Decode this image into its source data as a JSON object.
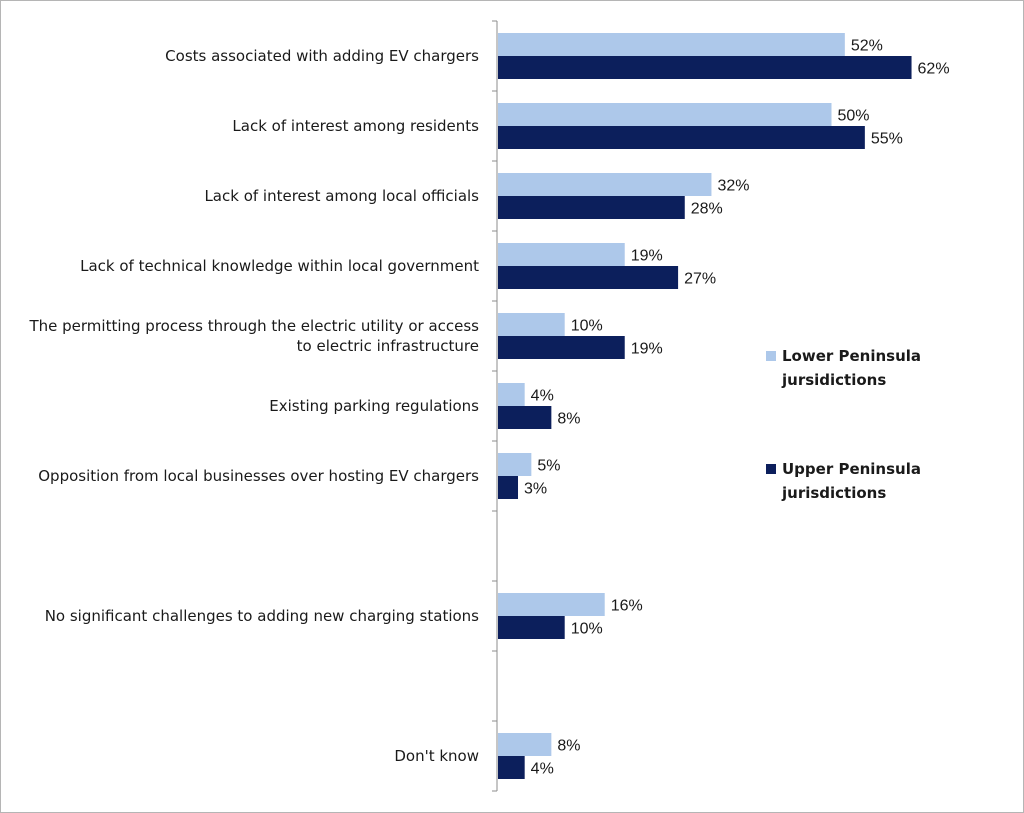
{
  "chart_data": {
    "type": "bar",
    "orientation": "horizontal",
    "categories": [
      [
        "Costs associated with adding EV chargers"
      ],
      [
        "Lack of interest among residents"
      ],
      [
        "Lack of interest among local officials"
      ],
      [
        "Lack of technical knowledge within local government"
      ],
      [
        "The permitting process through the electric utility or access",
        "to electric infrastructure"
      ],
      [
        "Existing parking regulations"
      ],
      [
        "Opposition from local businesses over hosting EV chargers"
      ],
      [
        ""
      ],
      [
        "No significant challenges to adding new charging stations"
      ],
      [
        ""
      ],
      [
        "Don't know"
      ]
    ],
    "series": [
      {
        "name": "Lower Peninsula jursidictions",
        "name_lines": [
          "Lower Peninsula",
          "jursidictions"
        ],
        "color": "#adc8ea",
        "values": [
          52,
          50,
          32,
          19,
          10,
          4,
          5,
          null,
          16,
          null,
          8
        ],
        "labels": [
          "52%",
          "50%",
          "32%",
          "19%",
          "10%",
          "4%",
          "5%",
          "",
          "16%",
          "",
          "8%"
        ]
      },
      {
        "name": "Upper Peninsula jurisdictions",
        "name_lines": [
          "Upper Peninsula",
          "jurisdictions"
        ],
        "color": "#0c1f5c",
        "values": [
          62,
          55,
          28,
          27,
          19,
          8,
          3,
          null,
          10,
          null,
          4
        ],
        "labels": [
          "62%",
          "55%",
          "28%",
          "27%",
          "19%",
          "8%",
          "3%",
          "",
          "10%",
          "",
          "4%"
        ]
      }
    ],
    "xlim": [
      0,
      100
    ],
    "grid": false,
    "legend_position": "right"
  }
}
